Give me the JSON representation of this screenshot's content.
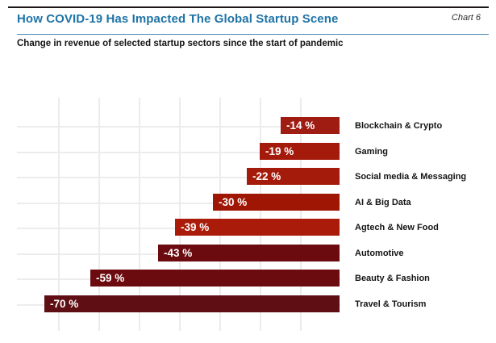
{
  "page": {
    "title": "How COVID-19 Has Impacted The Global Startup Scene",
    "subtitle": "Change in revenue of selected startup sectors since the start of pandemic",
    "chart_label": "Chart 6"
  },
  "colors": {
    "title_blue": "#1e73a6",
    "title_underline_blue": "#4d88b5",
    "top_rule_dark": "#1c1616",
    "grid_gray": "#ececec",
    "value_label_white": "#ffffff",
    "category_label_black": "#141414"
  },
  "chart_data": {
    "type": "bar",
    "orientation": "horizontal",
    "title": "How COVID-19 Has Impacted The Global Startup Scene",
    "subtitle": "Change in revenue of selected startup sectors since the start of pandemic",
    "unit": "%",
    "xlim": [
      -80,
      0
    ],
    "grid": true,
    "legend": false,
    "categories": [
      "Blockchain & Crypto",
      "Gaming",
      "Social media & Messaging",
      "AI & Big Data",
      "Agtech & New Food",
      "Automotive",
      "Beauty & Fashion",
      "Travel & Tourism"
    ],
    "values": [
      -14,
      -19,
      -22,
      -30,
      -39,
      -43,
      -59,
      -70
    ],
    "value_labels": [
      "-14 %",
      "-19 %",
      "-22 %",
      "-30 %",
      "-39 %",
      "-43 %",
      "-59 %",
      "-70 %"
    ],
    "bar_colors": [
      "#9e1c12",
      "#a41a0b",
      "#a41a0b",
      "#a01604",
      "#aa1b09",
      "#6c0b0f",
      "#6c0b0f",
      "#5f0e13"
    ]
  }
}
